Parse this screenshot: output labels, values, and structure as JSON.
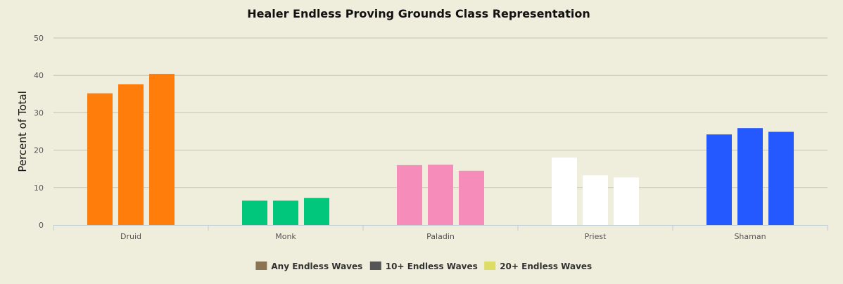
{
  "chart_data": {
    "type": "bar",
    "title": "Healer Endless Proving Grounds Class Representation",
    "xlabel": "",
    "ylabel": "Percent of Total",
    "categories": [
      "Druid",
      "Monk",
      "Paladin",
      "Priest",
      "Shaman"
    ],
    "yticks": [
      "0",
      "10",
      "20",
      "30",
      "40",
      "50"
    ],
    "ylim": [
      0,
      50
    ],
    "grid": true,
    "legend_position": "bottom-center",
    "series": [
      {
        "name": "Any Endless Waves",
        "legend_color": "#8b7355",
        "values": [
          35.2,
          6.5,
          16.0,
          18.0,
          24.2
        ]
      },
      {
        "name": "10+ Endless Waves",
        "legend_color": "#555555",
        "values": [
          37.6,
          6.5,
          16.1,
          13.3,
          25.9
        ]
      },
      {
        "name": "20+ Endless Waves",
        "legend_color": "#dddd66",
        "values": [
          40.4,
          7.2,
          14.5,
          12.7,
          24.9
        ]
      }
    ],
    "category_colors": [
      "#ff7d0a",
      "#00c77b",
      "#f58cba",
      "#ffffff",
      "#2459ff"
    ]
  }
}
